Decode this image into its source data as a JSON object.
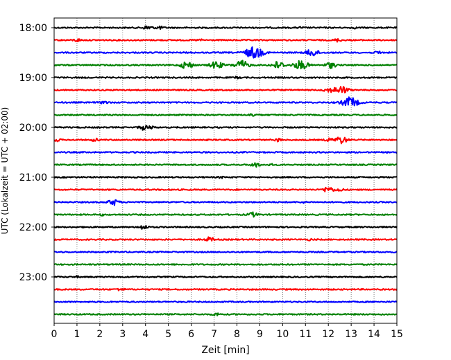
{
  "chart_data": {
    "type": "line",
    "title": "",
    "xlabel": "Zeit  [min]",
    "ylabel": "UTC (Lokalzeit = UTC + 02:00)",
    "xlim": [
      0,
      15
    ],
    "x_ticks": [
      "0",
      "1",
      "2",
      "3",
      "4",
      "5",
      "6",
      "7",
      "8",
      "9",
      "10",
      "11",
      "12",
      "13",
      "14",
      "15"
    ],
    "y_ticks": [
      "18:00",
      "19:00",
      "20:00",
      "21:00",
      "22:00",
      "23:00"
    ],
    "grid": "vertical dotted lines at every minute",
    "row_interval_min": 15,
    "colors": [
      "#000000",
      "#ff0000",
      "#0000ff",
      "#008000"
    ],
    "series": [
      {
        "start": "18:00",
        "color": "#000000",
        "events": [
          {
            "t": 4.1,
            "amp": 3
          },
          {
            "t": 4.6,
            "amp": 2
          },
          {
            "t": 10.8,
            "amp": 1
          },
          {
            "t": 13.1,
            "amp": 1
          }
        ]
      },
      {
        "start": "18:15",
        "color": "#ff0000",
        "events": [
          {
            "t": 1.0,
            "amp": 2
          },
          {
            "t": 6.4,
            "amp": 1
          },
          {
            "t": 12.4,
            "amp": 2
          }
        ]
      },
      {
        "start": "18:30",
        "color": "#0000ff",
        "events": [
          {
            "t": 8.75,
            "amp": 8
          },
          {
            "t": 11.3,
            "amp": 5
          },
          {
            "t": 14.2,
            "amp": 2
          }
        ]
      },
      {
        "start": "18:45",
        "color": "#008000",
        "events": [
          {
            "t": 5.8,
            "amp": 5
          },
          {
            "t": 7.1,
            "amp": 5
          },
          {
            "t": 8.2,
            "amp": 6
          },
          {
            "t": 9.8,
            "amp": 5
          },
          {
            "t": 10.8,
            "amp": 6
          },
          {
            "t": 12.1,
            "amp": 4
          }
        ]
      },
      {
        "start": "19:00",
        "color": "#000000",
        "events": [
          {
            "t": 8.0,
            "amp": 1
          }
        ]
      },
      {
        "start": "19:15",
        "color": "#ff0000",
        "events": [
          {
            "t": 12.0,
            "amp": 3
          },
          {
            "t": 12.3,
            "amp": 2
          },
          {
            "t": 12.6,
            "amp": 5
          }
        ]
      },
      {
        "start": "19:30",
        "color": "#0000ff",
        "events": [
          {
            "t": 2.2,
            "amp": 2
          },
          {
            "t": 12.95,
            "amp": 7
          }
        ]
      },
      {
        "start": "19:45",
        "color": "#008000",
        "events": [
          {
            "t": 8.7,
            "amp": 2
          }
        ]
      },
      {
        "start": "20:00",
        "color": "#000000",
        "events": [
          {
            "t": 3.9,
            "amp": 3
          },
          {
            "t": 4.2,
            "amp": 2
          }
        ]
      },
      {
        "start": "20:15",
        "color": "#ff0000",
        "events": [
          {
            "t": 0.1,
            "amp": 2
          },
          {
            "t": 1.8,
            "amp": 2
          },
          {
            "t": 9.8,
            "amp": 2
          },
          {
            "t": 12.0,
            "amp": 2
          },
          {
            "t": 12.55,
            "amp": 5
          }
        ]
      },
      {
        "start": "20:30",
        "color": "#0000ff",
        "events": []
      },
      {
        "start": "20:45",
        "color": "#008000",
        "events": [
          {
            "t": 8.8,
            "amp": 3
          },
          {
            "t": 9.5,
            "amp": 1
          }
        ]
      },
      {
        "start": "21:00",
        "color": "#000000",
        "events": [
          {
            "t": 7.3,
            "amp": 1
          }
        ]
      },
      {
        "start": "21:15",
        "color": "#ff0000",
        "events": [
          {
            "t": 12.0,
            "amp": 4
          },
          {
            "t": 12.5,
            "amp": 2
          }
        ]
      },
      {
        "start": "21:30",
        "color": "#0000ff",
        "events": [
          {
            "t": 2.6,
            "amp": 4
          },
          {
            "t": 10.9,
            "amp": 1
          }
        ]
      },
      {
        "start": "21:45",
        "color": "#008000",
        "events": [
          {
            "t": 2.1,
            "amp": 1
          },
          {
            "t": 8.7,
            "amp": 3
          }
        ]
      },
      {
        "start": "22:00",
        "color": "#000000",
        "events": [
          {
            "t": 3.9,
            "amp": 3
          }
        ]
      },
      {
        "start": "22:15",
        "color": "#ff0000",
        "events": [
          {
            "t": 6.8,
            "amp": 3
          },
          {
            "t": 11.2,
            "amp": 1
          }
        ]
      },
      {
        "start": "22:30",
        "color": "#0000ff",
        "events": []
      },
      {
        "start": "22:45",
        "color": "#008000",
        "events": []
      },
      {
        "start": "23:00",
        "color": "#000000",
        "events": [
          {
            "t": 1.0,
            "amp": 1
          }
        ]
      },
      {
        "start": "23:15",
        "color": "#ff0000",
        "events": [
          {
            "t": 2.9,
            "amp": 2
          }
        ]
      },
      {
        "start": "23:30",
        "color": "#0000ff",
        "events": []
      },
      {
        "start": "23:45",
        "color": "#008000",
        "events": [
          {
            "t": 7.1,
            "amp": 2
          }
        ]
      }
    ]
  }
}
